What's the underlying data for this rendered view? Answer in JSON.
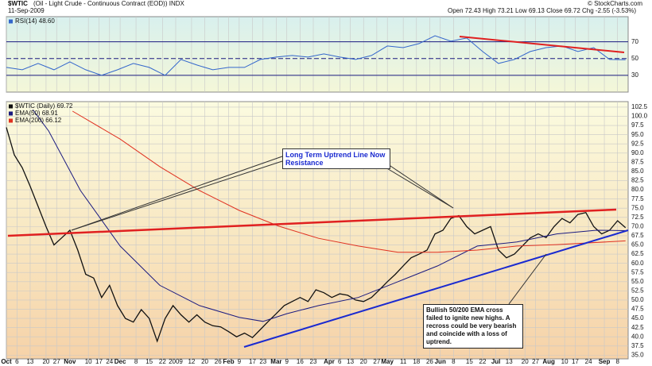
{
  "header": {
    "symbol": "$WTIC",
    "name": "(Oil - Light Crude - Continuous Contract (EOD)) INDX",
    "date": "11-Sep-2009",
    "quote": "Open 72.43 High 73.21 Low 69.13 Close 69.72 Chg -2.55 (-3.53%)",
    "copyright": "© StockCharts.com"
  },
  "chart_data": [
    {
      "type": "line",
      "xlim": [
        0,
        235
      ],
      "ylim": [
        10,
        100
      ],
      "yticks": [
        30,
        50,
        70
      ],
      "grid": true,
      "series": [
        {
          "name": "RSI(14) 48.60",
          "color": "#3366cc",
          "x": [
            0,
            6,
            12,
            18,
            24,
            30,
            36,
            42,
            48,
            54,
            60,
            66,
            72,
            78,
            84,
            90,
            96,
            102,
            108,
            114,
            120,
            126,
            132,
            138,
            144,
            150,
            156,
            162,
            168,
            174,
            180,
            186,
            192,
            198,
            204,
            210,
            216,
            222,
            228,
            234
          ],
          "values": [
            39.5,
            36.6,
            44.2,
            36.6,
            46.1,
            36.6,
            30,
            36.6,
            44.2,
            39.5,
            30,
            48.9,
            42.3,
            36.6,
            39.5,
            39.5,
            48.9,
            51.8,
            53.7,
            51.8,
            55.6,
            51.8,
            48.9,
            53.7,
            65,
            63.1,
            67.9,
            77.3,
            70.7,
            74.5,
            58.4,
            44.2,
            48.9,
            58.4,
            63.1,
            65,
            58.4,
            63.1,
            48.9,
            48.6
          ]
        }
      ]
    },
    {
      "type": "line",
      "xlim": [
        0,
        235
      ],
      "ylim": [
        34,
        104
      ],
      "grid": true,
      "yticks": [
        {
          "value": 35,
          "label": "35.0"
        },
        37.5,
        {
          "value": 40,
          "label": "40.0"
        },
        42.5,
        {
          "value": 45,
          "label": "45.0"
        },
        47.5,
        {
          "value": 50,
          "label": "50.0"
        },
        52.5,
        {
          "value": 55,
          "label": "55.0"
        },
        57.5,
        {
          "value": 60,
          "label": "60.0"
        },
        62.5,
        {
          "value": 65,
          "label": "65.0"
        },
        67.5,
        {
          "value": 70,
          "label": "70.0"
        },
        72.5,
        {
          "value": 75,
          "label": "75.0"
        },
        77.5,
        {
          "value": 80,
          "label": "80.0"
        },
        82.5,
        {
          "value": 85,
          "label": "85.0"
        },
        87.5,
        {
          "value": 90,
          "label": "90.0"
        },
        92.5,
        {
          "value": 95,
          "label": "95.0"
        },
        97.5,
        {
          "value": 100,
          "label": "100.0"
        },
        102.5
      ],
      "xticks": [
        {
          "value": 0,
          "label": "Oct"
        },
        {
          "value": 4,
          "label": "6"
        },
        {
          "value": 9,
          "label": "13"
        },
        {
          "value": 15,
          "label": "20"
        },
        {
          "value": 19,
          "label": "27"
        },
        {
          "value": 24,
          "label": "Nov"
        },
        {
          "value": 31,
          "label": "10"
        },
        {
          "value": 35,
          "label": "17"
        },
        {
          "value": 39,
          "label": "24"
        },
        {
          "value": 43,
          "label": "Dec"
        },
        {
          "value": 49,
          "label": "8"
        },
        {
          "value": 54,
          "label": "15"
        },
        {
          "value": 59,
          "label": "22"
        },
        {
          "value": 64,
          "label": "2009"
        },
        {
          "value": 70,
          "label": "12"
        },
        {
          "value": 75,
          "label": "20"
        },
        {
          "value": 80,
          "label": "26"
        },
        {
          "value": 84,
          "label": "Feb"
        },
        {
          "value": 88,
          "label": "9"
        },
        {
          "value": 93,
          "label": "17"
        },
        {
          "value": 97,
          "label": "23"
        },
        {
          "value": 102,
          "label": "Mar"
        },
        {
          "value": 106,
          "label": "9"
        },
        {
          "value": 111,
          "label": "16"
        },
        {
          "value": 116,
          "label": "23"
        },
        {
          "value": 122,
          "label": "Apr"
        },
        {
          "value": 126,
          "label": "6"
        },
        {
          "value": 130,
          "label": "13"
        },
        {
          "value": 135,
          "label": "20"
        },
        {
          "value": 140,
          "label": "27"
        },
        {
          "value": 144,
          "label": "May"
        },
        {
          "value": 150,
          "label": "11"
        },
        {
          "value": 155,
          "label": "18"
        },
        {
          "value": 160,
          "label": "26"
        },
        {
          "value": 164,
          "label": "Jun"
        },
        {
          "value": 169,
          "label": "8"
        },
        {
          "value": 175,
          "label": "15"
        },
        {
          "value": 180,
          "label": "22"
        },
        {
          "value": 185,
          "label": "Jul"
        },
        {
          "value": 190,
          "label": "13"
        },
        {
          "value": 196,
          "label": "20"
        },
        {
          "value": 200,
          "label": "27"
        },
        {
          "value": 205,
          "label": "Aug"
        },
        {
          "value": 211,
          "label": "10"
        },
        {
          "value": 215,
          "label": "17"
        },
        {
          "value": 220,
          "label": "24"
        },
        {
          "value": 226,
          "label": "Sep"
        },
        {
          "value": 231,
          "label": "8"
        }
      ],
      "series": [
        {
          "name": "$WTIC (Daily) 69.72",
          "color": "#111111",
          "x": [
            0,
            3,
            6,
            9,
            12,
            15,
            18,
            21,
            24,
            27,
            30,
            33,
            36,
            39,
            42,
            45,
            48,
            51,
            54,
            57,
            60,
            63,
            66,
            69,
            72,
            75,
            78,
            81,
            84,
            87,
            90,
            93,
            96,
            99,
            102,
            105,
            108,
            111,
            114,
            117,
            120,
            123,
            126,
            129,
            132,
            135,
            138,
            141,
            144,
            147,
            150,
            153,
            156,
            159,
            162,
            165,
            168,
            171,
            174,
            177,
            180,
            183,
            186,
            189,
            192,
            195,
            198,
            201,
            204,
            207,
            210,
            213,
            216,
            219,
            222,
            225,
            228,
            231,
            234
          ],
          "values": [
            97,
            89.5,
            86,
            81,
            75.5,
            70,
            65,
            67,
            69,
            63.6,
            57,
            56,
            50.7,
            54,
            48.5,
            45,
            44,
            47.4,
            45,
            38.8,
            45,
            48.5,
            46,
            44,
            46,
            44,
            43,
            42.7,
            41.4,
            40,
            41,
            39.8,
            42,
            44.2,
            46.3,
            48.5,
            49.6,
            50.7,
            49.6,
            52.8,
            52,
            50.7,
            51.7,
            51.3,
            50,
            49.6,
            50.7,
            52.8,
            55,
            57,
            59.3,
            61.5,
            62.5,
            63.6,
            68,
            69,
            72.2,
            73,
            70,
            68,
            69,
            70,
            63.6,
            61.5,
            62.5,
            64.7,
            66.9,
            68,
            67,
            70,
            72.2,
            71,
            73.3,
            73.8,
            70,
            68,
            69,
            71.6,
            69.7
          ]
        },
        {
          "name": "EMA(50) 68.91",
          "color": "#1a1a80",
          "x": [
            10,
            16,
            28,
            43,
            58,
            73,
            88,
            97,
            106,
            118,
            133,
            148,
            163,
            178,
            193,
            208,
            223,
            234
          ],
          "values": [
            101.8,
            96,
            79.8,
            64.7,
            54,
            48.5,
            45.3,
            44.2,
            46.3,
            48.5,
            50.7,
            55,
            59.3,
            64.7,
            65.8,
            68,
            69,
            68.9
          ]
        },
        {
          "name": "EMA(200) 66.12",
          "color": "#e03020",
          "x": [
            25,
            43,
            58,
            73,
            88,
            103,
            118,
            133,
            148,
            163,
            178,
            193,
            208,
            234
          ],
          "values": [
            101.4,
            93.8,
            86.3,
            79.8,
            74.4,
            70.1,
            66.8,
            64.7,
            63,
            63,
            63.6,
            64.7,
            65.1,
            66.1
          ]
        }
      ],
      "annotations": [
        "Long Term Uptrend Line Now Resistance",
        "Bullish 50/200 EMA cross failed to ignite new highs.  A recross could be very bearish and coincide with a loss of uptrend."
      ]
    }
  ]
}
